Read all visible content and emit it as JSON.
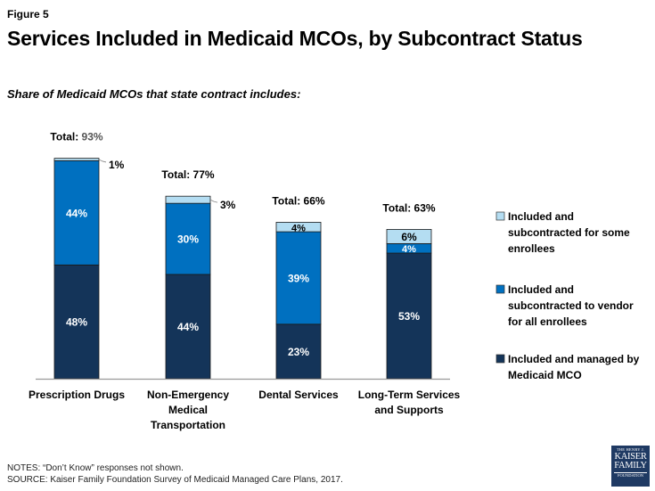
{
  "figure_label": "Figure 5",
  "title": "Services Included in Medicaid MCOs, by Subcontract Status",
  "subtitle": "Share of Medicaid MCOs that state contract includes:",
  "notes": "NOTES: “Don’t Know” responses not shown.",
  "source": "SOURCE: Kaiser Family Foundation Survey of Medicaid Managed Care Plans, 2017.",
  "logo": {
    "line1": "THE HENRY J.",
    "line2": "KAISER",
    "line3": "FAMILY",
    "line4": "FOUNDATION"
  },
  "colors": {
    "managed": "#143459",
    "subcontracted_all": "#0070C0",
    "subcontracted_some": "#B4DDF2"
  },
  "chart_data": {
    "type": "bar",
    "stacked": true,
    "title": "Services Included in Medicaid MCOs, by Subcontract Status",
    "subtitle": "Share of Medicaid MCOs that state contract includes:",
    "xlabel": "",
    "ylabel": "",
    "ylim": [
      0,
      100
    ],
    "grid": false,
    "legend_position": "right",
    "categories": [
      [
        "Prescription Drugs"
      ],
      [
        "Non-Emergency",
        "Medical",
        "Transportation"
      ],
      [
        "Dental Services"
      ],
      [
        "Long-Term Services",
        "and Supports"
      ]
    ],
    "series": [
      {
        "name": "Included and managed by Medicaid MCO",
        "key": "managed",
        "values": [
          48,
          44,
          23,
          53
        ]
      },
      {
        "name": "Included and subcontracted to vendor for all enrollees",
        "key": "subcontracted_all",
        "values": [
          44,
          30,
          39,
          4
        ]
      },
      {
        "name": "Included and subcontracted for some enrollees",
        "key": "subcontracted_some",
        "values": [
          1,
          3,
          4,
          6
        ]
      }
    ],
    "totals": [
      93,
      77,
      66,
      63
    ],
    "total_prefix": "Total:",
    "legend": [
      {
        "lines": [
          "Included and",
          "subcontracted for some",
          "enrollees"
        ],
        "key": "subcontracted_some"
      },
      {
        "lines": [
          "Included and",
          "subcontracted to vendor",
          "for all enrollees"
        ],
        "key": "subcontracted_all"
      },
      {
        "lines": [
          "Included and managed by",
          "Medicaid MCO"
        ],
        "key": "managed"
      }
    ]
  }
}
